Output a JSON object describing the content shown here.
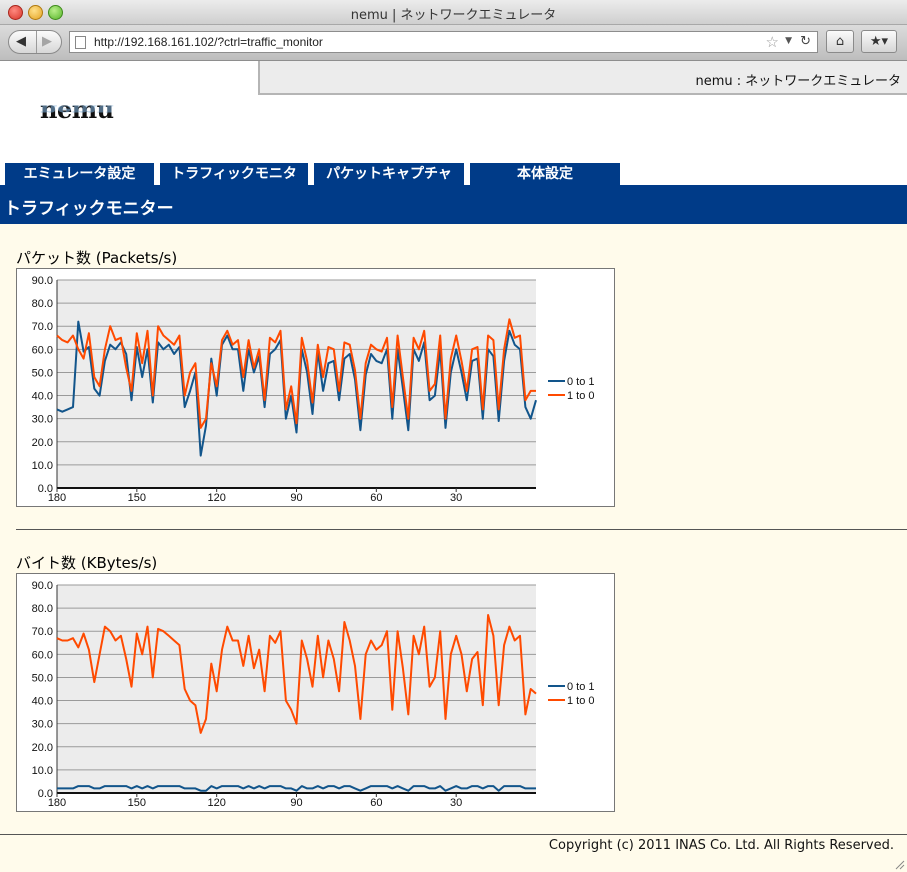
{
  "window": {
    "title": "nemu | ネットワークエミュレータ"
  },
  "toolbar": {
    "url": "http://192.168.161.102/?ctrl=traffic_monitor"
  },
  "header": {
    "tab_label": "nemu : ネットワークエミュレータ",
    "logo_text": "nemu"
  },
  "menu": [
    {
      "label": "エミュレータ設定"
    },
    {
      "label": "トラフィックモニタ"
    },
    {
      "label": "パケットキャプチャ"
    },
    {
      "label": "本体設定"
    }
  ],
  "page": {
    "heading": "トラフィックモニター"
  },
  "sections": {
    "packets_title": "パケット数 (Packets/s)",
    "bytes_title": "バイト数 (KBytes/s)"
  },
  "footer": {
    "copyright": "Copyright (c) 2011 INAS Co. Ltd. All Rights Reserved."
  },
  "colors": {
    "series_0to1": "#12558b",
    "series_1to0": "#ff4a00",
    "nav_blue": "#003b88"
  },
  "chart_data": [
    {
      "type": "line",
      "xlim": [
        180,
        0
      ],
      "ylim": [
        0,
        90
      ],
      "x_ticks": [
        "180",
        "150",
        "120",
        "90",
        "60",
        "30"
      ],
      "y_ticks": [
        "90.0",
        "80.0",
        "70.0",
        "60.0",
        "50.0",
        "40.0",
        "30.0",
        "20.0",
        "10.0",
        "0.0"
      ],
      "grid": true,
      "legend_position": "right",
      "series": [
        {
          "name": "0 to 1",
          "x": [
            180,
            178,
            176,
            174,
            172,
            170,
            168,
            166,
            164,
            162,
            160,
            158,
            156,
            154,
            152,
            150,
            148,
            146,
            144,
            142,
            140,
            138,
            136,
            134,
            132,
            130,
            128,
            126,
            124,
            122,
            120,
            118,
            116,
            114,
            112,
            110,
            108,
            106,
            104,
            102,
            100,
            98,
            96,
            94,
            92,
            90,
            88,
            86,
            84,
            82,
            80,
            78,
            76,
            74,
            72,
            70,
            68,
            66,
            64,
            62,
            60,
            58,
            56,
            54,
            52,
            50,
            48,
            46,
            44,
            42,
            40,
            38,
            36,
            34,
            32,
            30,
            28,
            26,
            24,
            22,
            20,
            18,
            16,
            14,
            12,
            10,
            8,
            6,
            4,
            2,
            0
          ],
          "values": [
            34,
            33,
            34,
            35,
            72,
            59,
            61,
            43,
            40,
            55,
            62,
            60,
            63,
            58,
            38,
            61,
            48,
            60,
            37,
            63,
            60,
            62,
            58,
            61,
            35,
            42,
            50,
            14,
            27,
            56,
            40,
            62,
            66,
            60,
            60,
            42,
            60,
            50,
            57,
            35,
            58,
            60,
            64,
            30,
            40,
            24,
            60,
            50,
            32,
            59,
            42,
            54,
            55,
            38,
            56,
            58,
            47,
            25,
            49,
            58,
            55,
            54,
            60,
            30,
            60,
            43,
            25,
            60,
            55,
            63,
            38,
            40,
            60,
            26,
            50,
            60,
            50,
            38,
            55,
            56,
            30,
            60,
            57,
            29,
            55,
            68,
            62,
            60,
            35,
            30,
            38
          ]
        },
        {
          "name": "1 to 0",
          "x": [
            180,
            178,
            176,
            174,
            172,
            170,
            168,
            166,
            164,
            162,
            160,
            158,
            156,
            154,
            152,
            150,
            148,
            146,
            144,
            142,
            140,
            138,
            136,
            134,
            132,
            130,
            128,
            126,
            124,
            122,
            120,
            118,
            116,
            114,
            112,
            110,
            108,
            106,
            104,
            102,
            100,
            98,
            96,
            94,
            92,
            90,
            88,
            86,
            84,
            82,
            80,
            78,
            76,
            74,
            72,
            70,
            68,
            66,
            64,
            62,
            60,
            58,
            56,
            54,
            52,
            50,
            48,
            46,
            44,
            42,
            40,
            38,
            36,
            34,
            32,
            30,
            28,
            26,
            24,
            22,
            20,
            18,
            16,
            14,
            12,
            10,
            8,
            6,
            4,
            2,
            0
          ],
          "values": [
            66,
            64,
            63,
            66,
            60,
            56,
            67,
            48,
            44,
            60,
            70,
            64,
            65,
            52,
            42,
            67,
            54,
            68,
            40,
            70,
            66,
            64,
            62,
            66,
            40,
            50,
            54,
            26,
            30,
            54,
            44,
            64,
            68,
            62,
            64,
            48,
            64,
            52,
            60,
            38,
            65,
            63,
            68,
            34,
            44,
            28,
            65,
            55,
            37,
            62,
            48,
            61,
            60,
            42,
            63,
            62,
            51,
            30,
            54,
            62,
            60,
            59,
            65,
            35,
            66,
            48,
            30,
            65,
            60,
            68,
            42,
            45,
            66,
            30,
            56,
            66,
            55,
            42,
            60,
            61,
            34,
            66,
            64,
            34,
            60,
            73,
            65,
            66,
            38,
            42,
            42
          ]
        }
      ]
    },
    {
      "type": "line",
      "xlim": [
        180,
        0
      ],
      "ylim": [
        0,
        90
      ],
      "x_ticks": [
        "180",
        "150",
        "120",
        "90",
        "60",
        "30"
      ],
      "y_ticks": [
        "90.0",
        "80.0",
        "70.0",
        "60.0",
        "50.0",
        "40.0",
        "30.0",
        "20.0",
        "10.0",
        "0.0"
      ],
      "grid": true,
      "legend_position": "right",
      "series": [
        {
          "name": "0 to 1",
          "x": [
            180,
            178,
            176,
            174,
            172,
            170,
            168,
            166,
            164,
            162,
            160,
            158,
            156,
            154,
            152,
            150,
            148,
            146,
            144,
            142,
            140,
            138,
            136,
            134,
            132,
            130,
            128,
            126,
            124,
            122,
            120,
            118,
            116,
            114,
            112,
            110,
            108,
            106,
            104,
            102,
            100,
            98,
            96,
            94,
            92,
            90,
            88,
            86,
            84,
            82,
            80,
            78,
            76,
            74,
            72,
            70,
            68,
            66,
            64,
            62,
            60,
            58,
            56,
            54,
            52,
            50,
            48,
            46,
            44,
            42,
            40,
            38,
            36,
            34,
            32,
            30,
            28,
            26,
            24,
            22,
            20,
            18,
            16,
            14,
            12,
            10,
            8,
            6,
            4,
            2,
            0
          ],
          "values": [
            2,
            2,
            2,
            2,
            3,
            3,
            3,
            2,
            2,
            3,
            3,
            3,
            3,
            3,
            2,
            3,
            2,
            3,
            2,
            3,
            3,
            3,
            3,
            3,
            2,
            2,
            2,
            1,
            1,
            3,
            2,
            3,
            3,
            3,
            3,
            2,
            3,
            2,
            3,
            2,
            3,
            3,
            3,
            2,
            2,
            1,
            3,
            2,
            2,
            3,
            2,
            3,
            3,
            2,
            3,
            3,
            2,
            1,
            2,
            3,
            3,
            3,
            3,
            2,
            3,
            2,
            1,
            3,
            3,
            3,
            2,
            2,
            3,
            1,
            2,
            3,
            2,
            2,
            3,
            3,
            2,
            3,
            3,
            1,
            3,
            3,
            3,
            3,
            2,
            2,
            2
          ]
        },
        {
          "name": "1 to 0",
          "x": [
            180,
            178,
            176,
            174,
            172,
            170,
            168,
            166,
            164,
            162,
            160,
            158,
            156,
            154,
            152,
            150,
            148,
            146,
            144,
            142,
            140,
            138,
            136,
            134,
            132,
            130,
            128,
            126,
            124,
            122,
            120,
            118,
            116,
            114,
            112,
            110,
            108,
            106,
            104,
            102,
            100,
            98,
            96,
            94,
            92,
            90,
            88,
            86,
            84,
            82,
            80,
            78,
            76,
            74,
            72,
            70,
            68,
            66,
            64,
            62,
            60,
            58,
            56,
            54,
            52,
            50,
            48,
            46,
            44,
            42,
            40,
            38,
            36,
            34,
            32,
            30,
            28,
            26,
            24,
            22,
            20,
            18,
            16,
            14,
            12,
            10,
            8,
            6,
            4,
            2,
            0
          ],
          "values": [
            67,
            66,
            66,
            67,
            63,
            69,
            62,
            48,
            60,
            72,
            70,
            66,
            68,
            58,
            46,
            69,
            60,
            72,
            50,
            71,
            70,
            68,
            66,
            64,
            45,
            40,
            38,
            26,
            32,
            56,
            44,
            62,
            72,
            66,
            66,
            55,
            68,
            54,
            62,
            44,
            68,
            65,
            70,
            40,
            36,
            30,
            66,
            58,
            46,
            68,
            50,
            66,
            58,
            44,
            74,
            66,
            55,
            32,
            60,
            66,
            62,
            64,
            70,
            36,
            70,
            54,
            34,
            68,
            60,
            72,
            46,
            50,
            70,
            32,
            60,
            68,
            60,
            44,
            58,
            61,
            38,
            77,
            68,
            38,
            64,
            72,
            66,
            68,
            34,
            45,
            43
          ]
        }
      ]
    }
  ]
}
